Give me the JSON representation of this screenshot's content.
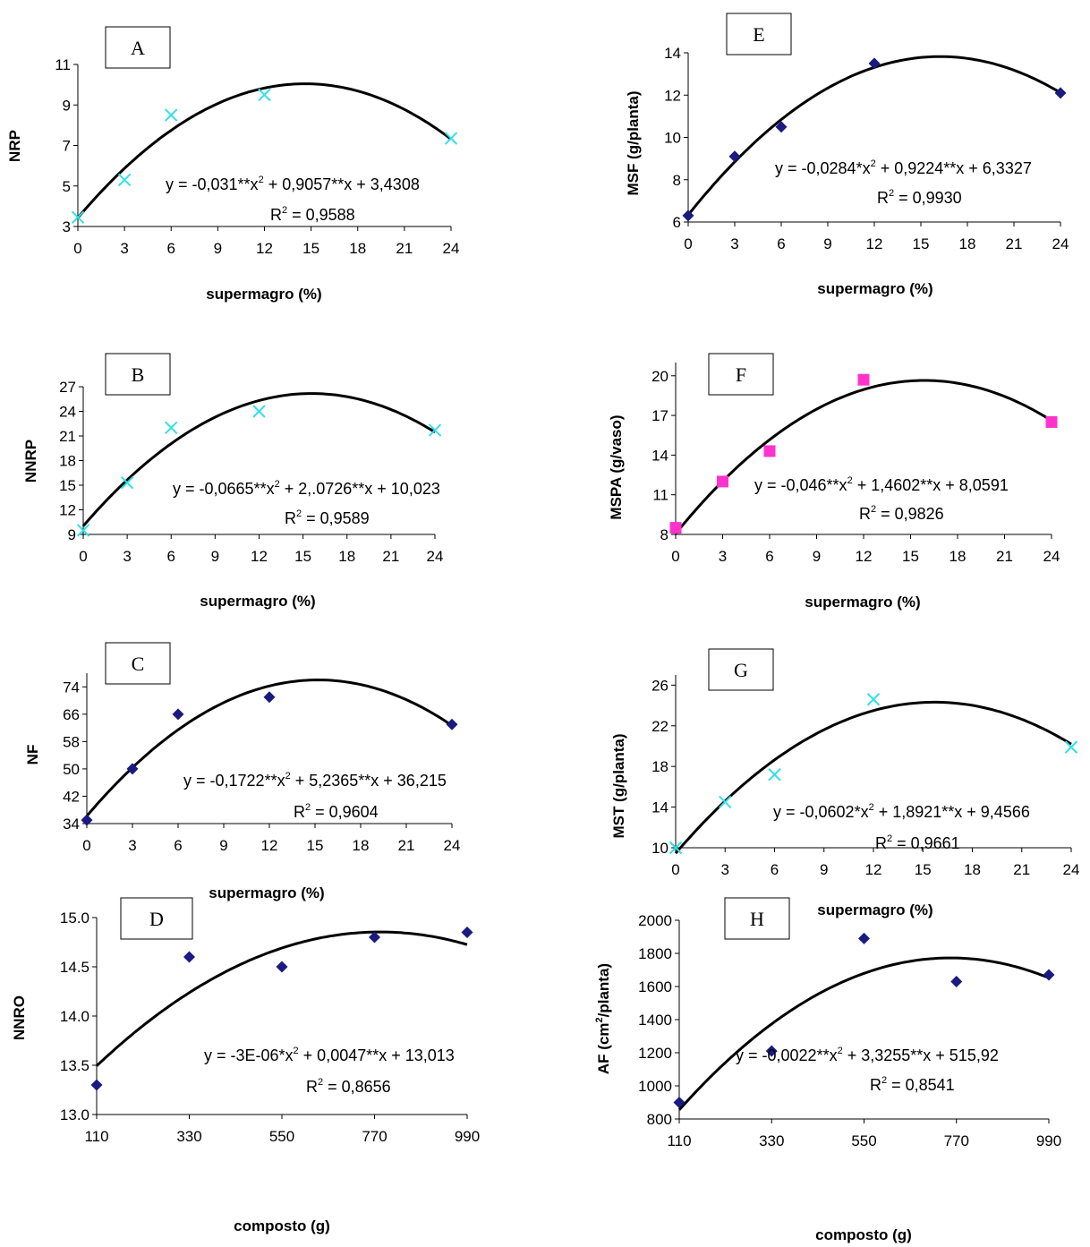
{
  "chart_data": [
    {
      "type": "scatter",
      "panel_label": "A",
      "xlabel": "supermagro (%)",
      "ylabel": "NRP",
      "x_ticks": [
        0,
        3,
        6,
        9,
        12,
        15,
        18,
        21,
        24
      ],
      "y_ticks": [
        3,
        5,
        7,
        9,
        11
      ],
      "xlim": [
        0,
        24
      ],
      "ylim": [
        3,
        11
      ],
      "marker": "x",
      "marker_color": "#33e0e8",
      "series": [
        {
          "x": [
            0,
            3,
            6,
            12,
            24
          ],
          "y": [
            3.45,
            5.3,
            8.5,
            9.5,
            7.35
          ]
        }
      ],
      "fit": {
        "a": -0.031,
        "b": 0.9057,
        "c": 3.4308
      },
      "equation_text": "y = -0,031**x",
      "equation_text_end": " + 0,9057**x + 3,4308",
      "r2_text": " = 0,9588"
    },
    {
      "type": "scatter",
      "panel_label": "B",
      "xlabel": "supermagro (%)",
      "ylabel": "NNRP",
      "x_ticks": [
        0,
        3,
        6,
        9,
        12,
        15,
        18,
        21,
        24
      ],
      "y_ticks": [
        9,
        12,
        15,
        18,
        21,
        24,
        27
      ],
      "xlim": [
        0,
        24
      ],
      "ylim": [
        9,
        27
      ],
      "marker": "x",
      "marker_color": "#33e0e8",
      "series": [
        {
          "x": [
            0,
            3,
            6,
            12,
            24
          ],
          "y": [
            9.5,
            15.3,
            22,
            24,
            21.7
          ]
        }
      ],
      "fit": {
        "a": -0.0665,
        "b": 2.0726,
        "c": 10.023
      },
      "equation_text": "y = -0,0665**x",
      "equation_text_end": " + 2,.0726**x + 10,023",
      "r2_text": " = 0,9589"
    },
    {
      "type": "scatter",
      "panel_label": "C",
      "xlabel": "supermagro (%)",
      "ylabel": "NF",
      "x_ticks": [
        0,
        3,
        6,
        9,
        12,
        15,
        18,
        21,
        24
      ],
      "y_ticks": [
        34,
        42,
        50,
        58,
        66,
        74
      ],
      "xlim": [
        0,
        24
      ],
      "ylim": [
        34,
        78
      ],
      "marker": "diamond",
      "marker_color": "#1a1a80",
      "series": [
        {
          "x": [
            0,
            3,
            6,
            12,
            24
          ],
          "y": [
            35,
            50,
            66,
            71,
            63
          ]
        }
      ],
      "fit": {
        "a": -0.1722,
        "b": 5.2365,
        "c": 36.215
      },
      "equation_text": "y = -0,1722**x",
      "equation_text_end": " + 5,2365**x + 36,215",
      "r2_text": " = 0,9604"
    },
    {
      "type": "scatter",
      "panel_label": "D",
      "xlabel": "composto (g)",
      "ylabel": "NNRO",
      "x_ticks": [
        110,
        330,
        550,
        770,
        990
      ],
      "y_tick_labels": [
        "13.0",
        "13.5",
        "14.0",
        "14.5",
        "15.0"
      ],
      "y_ticks": [
        13.0,
        13.5,
        14.0,
        14.5,
        15.0
      ],
      "xlim": [
        110,
        990
      ],
      "ylim": [
        13.0,
        15.0
      ],
      "marker": "diamond",
      "marker_color": "#1a1a80",
      "series": [
        {
          "x": [
            110,
            330,
            550,
            770,
            990
          ],
          "y": [
            13.3,
            14.6,
            14.5,
            14.8,
            14.85
          ]
        }
      ],
      "fit": {
        "a": -3e-06,
        "b": 0.0047,
        "c": 13.013
      },
      "equation_text": "y = -3E-06*x",
      "equation_text_end": " + 0,0047**x + 13,013",
      "r2_text": " = 0,8656"
    },
    {
      "type": "scatter",
      "panel_label": "E",
      "xlabel": "supermagro (%)",
      "ylabel": "MSF (g/planta)",
      "x_ticks": [
        0,
        3,
        6,
        9,
        12,
        15,
        18,
        21,
        24
      ],
      "y_ticks": [
        6,
        8,
        10,
        12,
        14
      ],
      "xlim": [
        0,
        24
      ],
      "ylim": [
        6,
        14
      ],
      "marker": "diamond",
      "marker_color": "#1a1a80",
      "series": [
        {
          "x": [
            0,
            3,
            6,
            12,
            24
          ],
          "y": [
            6.3,
            9.1,
            10.5,
            13.5,
            12.1
          ]
        }
      ],
      "fit": {
        "a": -0.0284,
        "b": 0.9224,
        "c": 6.3327
      },
      "equation_text": "y = -0,0284*x",
      "equation_text_end": " + 0,9224**x + 6,3327",
      "r2_text": " = 0,9930"
    },
    {
      "type": "scatter",
      "panel_label": "F",
      "xlabel": "supermagro (%)",
      "ylabel": "MSPA (g/vaso)",
      "x_ticks": [
        0,
        3,
        6,
        9,
        12,
        15,
        18,
        21,
        24
      ],
      "y_ticks": [
        8,
        11,
        14,
        17,
        20
      ],
      "xlim": [
        0,
        24
      ],
      "ylim": [
        8,
        21
      ],
      "marker": "square",
      "marker_color": "#ff33cc",
      "series": [
        {
          "x": [
            0,
            3,
            6,
            12,
            24
          ],
          "y": [
            8.5,
            12,
            14.3,
            19.7,
            16.5
          ]
        }
      ],
      "fit": {
        "a": -0.046,
        "b": 1.4602,
        "c": 8.0591
      },
      "equation_text": "y = -0,046**x",
      "equation_text_end": " + 1,4602**x + 8,0591",
      "r2_text": " = 0,9826"
    },
    {
      "type": "scatter",
      "panel_label": "G",
      "xlabel": "supermagro (%)",
      "ylabel": "MST (g/planta)",
      "x_ticks": [
        0,
        3,
        6,
        9,
        12,
        15,
        18,
        21,
        24
      ],
      "y_ticks": [
        10,
        14,
        18,
        22,
        26
      ],
      "xlim": [
        0,
        24
      ],
      "ylim": [
        10,
        27
      ],
      "marker": "x",
      "marker_color": "#33e0e8",
      "series": [
        {
          "x": [
            0,
            3,
            6,
            12,
            24
          ],
          "y": [
            10,
            14.5,
            17.2,
            24.6,
            19.9
          ]
        }
      ],
      "fit": {
        "a": -0.0602,
        "b": 1.8921,
        "c": 9.4566
      },
      "equation_text": "y = -0,0602*x",
      "equation_text_end": " + 1,8921**x + 9,4566",
      "r2_text": " = 0,9661"
    },
    {
      "type": "scatter",
      "panel_label": "H",
      "xlabel": "composto (g)",
      "ylabel": "AF (cm",
      "ylabel_end": "/planta)",
      "x_ticks": [
        110,
        330,
        550,
        770,
        990
      ],
      "y_ticks": [
        800,
        1000,
        1200,
        1400,
        1600,
        1800,
        2000
      ],
      "xlim": [
        110,
        990
      ],
      "ylim": [
        800,
        2000
      ],
      "marker": "diamond",
      "marker_color": "#1a1a80",
      "series": [
        {
          "x": [
            110,
            330,
            550,
            770,
            990
          ],
          "y": [
            900,
            1210,
            1890,
            1630,
            1670
          ]
        }
      ],
      "fit": {
        "a": -0.0022,
        "b": 3.3255,
        "c": 515.92
      },
      "equation_text": "y = -0,0022**x",
      "equation_text_end": " + 3,3255**x + 515,92",
      "r2_text": " = 0,8541"
    }
  ]
}
